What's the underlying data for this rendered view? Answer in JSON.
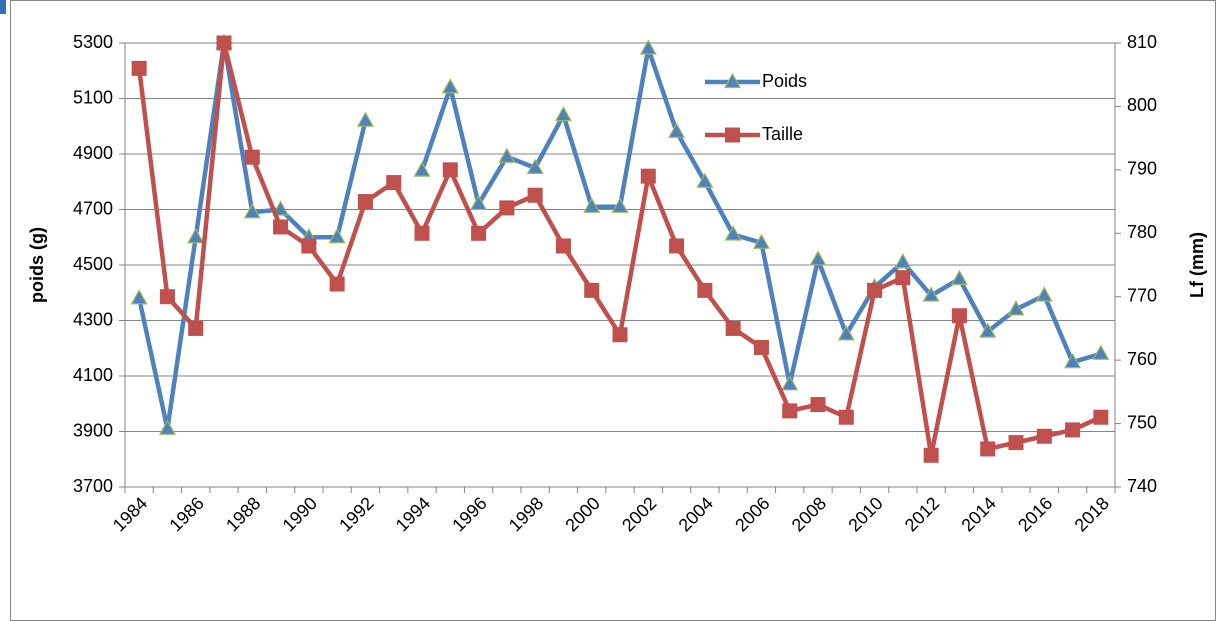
{
  "chart_data": {
    "type": "line",
    "categories": [
      "1984",
      null,
      "1986",
      null,
      "1988",
      null,
      "1990",
      null,
      "1992",
      null,
      "1994",
      null,
      "1996",
      null,
      "1998",
      null,
      "2000",
      null,
      "2002",
      null,
      "2004",
      null,
      "2006",
      null,
      "2008",
      null,
      "2010",
      null,
      "2012",
      null,
      "2014",
      null,
      "2016",
      null,
      "2018"
    ],
    "series": [
      {
        "name": "Poids",
        "color": "#4f81bd",
        "marker": "triangle",
        "values": [
          4380,
          3910,
          4600,
          5300,
          4690,
          4700,
          4600,
          4600,
          5020,
          null,
          4840,
          5140,
          4720,
          4890,
          4850,
          5040,
          4710,
          4710,
          5280,
          4980,
          4800,
          4610,
          4580,
          4070,
          4520,
          4250,
          4420,
          4510,
          4390,
          4450,
          4260,
          4340,
          4390,
          4150,
          4180
        ]
      },
      {
        "name": "Taille",
        "color": "#c0504d",
        "marker": "square",
        "axis": "y2",
        "values": [
          806,
          770,
          765,
          810,
          792,
          781,
          778,
          772,
          785,
          788,
          780,
          790,
          780,
          784,
          786,
          778,
          771,
          764,
          789,
          778,
          771,
          765,
          762,
          752,
          753,
          751,
          771,
          773,
          745,
          767,
          746,
          747,
          748,
          749,
          751
        ]
      }
    ],
    "y_label": "poids (g)",
    "y2_label": "Lf (mm)",
    "ylim": [
      3700,
      5300
    ],
    "yticks": [
      3700,
      3900,
      4100,
      4300,
      4500,
      4700,
      4900,
      5100,
      5300
    ],
    "y2lim": [
      740,
      810
    ],
    "y2ticks": [
      740,
      750,
      760,
      770,
      780,
      790,
      800,
      810
    ],
    "grid": true,
    "legend": "top-center"
  }
}
